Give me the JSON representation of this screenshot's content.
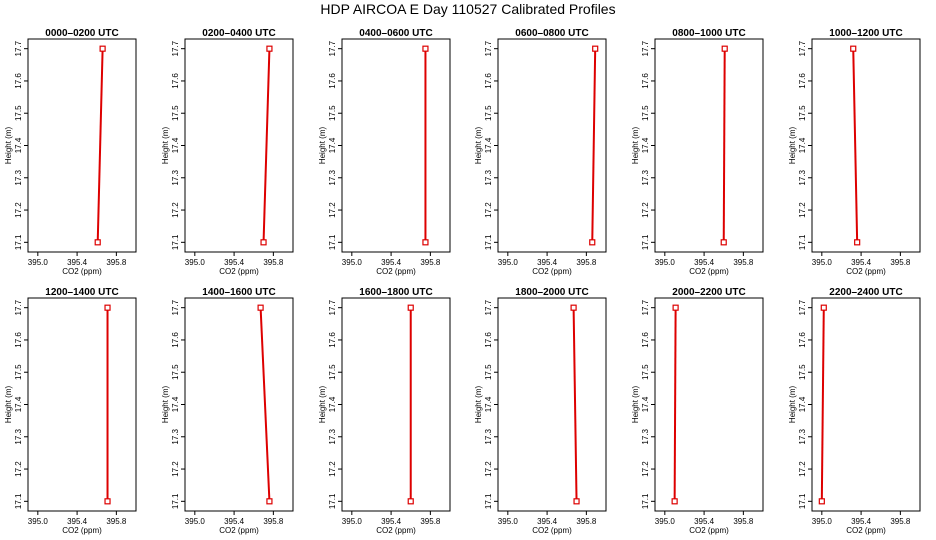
{
  "title": "HDP AIRCOA E  Day 110527  Calibrated Profiles",
  "colors": {
    "profile": "#dd0000",
    "axis": "#000000",
    "background": "#ffffff"
  },
  "chart_data": {
    "type": "line",
    "xlabel": "CO2 (ppm)",
    "ylabel": "Height (m)",
    "xlim": [
      394.9,
      396.0
    ],
    "ylim": [
      17.07,
      17.73
    ],
    "xticks": [
      "395.0",
      "395.4",
      "395.8"
    ],
    "xtick_values": [
      395.0,
      395.4,
      395.8
    ],
    "yticks": [
      "17.1",
      "17.2",
      "17.3",
      "17.4",
      "17.5",
      "17.6",
      "17.7"
    ],
    "ytick_values": [
      17.1,
      17.2,
      17.3,
      17.4,
      17.5,
      17.6,
      17.7
    ],
    "panels": [
      {
        "title": "0000–0200 UTC",
        "points": [
          {
            "x": 395.61,
            "y": 17.1
          },
          {
            "x": 395.66,
            "y": 17.7
          }
        ]
      },
      {
        "title": "0200–0400 UTC",
        "points": [
          {
            "x": 395.7,
            "y": 17.1
          },
          {
            "x": 395.76,
            "y": 17.7
          }
        ]
      },
      {
        "title": "0400–0600 UTC",
        "points": [
          {
            "x": 395.75,
            "y": 17.1
          },
          {
            "x": 395.75,
            "y": 17.7
          }
        ]
      },
      {
        "title": "0600–0800 UTC",
        "points": [
          {
            "x": 395.86,
            "y": 17.1
          },
          {
            "x": 395.89,
            "y": 17.7
          }
        ]
      },
      {
        "title": "0800–1000 UTC",
        "points": [
          {
            "x": 395.6,
            "y": 17.1
          },
          {
            "x": 395.61,
            "y": 17.7
          }
        ]
      },
      {
        "title": "1000–1200 UTC",
        "points": [
          {
            "x": 395.36,
            "y": 17.1
          },
          {
            "x": 395.32,
            "y": 17.7
          }
        ]
      },
      {
        "title": "1200–1400 UTC",
        "points": [
          {
            "x": 395.71,
            "y": 17.1
          },
          {
            "x": 395.71,
            "y": 17.7
          }
        ]
      },
      {
        "title": "1400–1600 UTC",
        "points": [
          {
            "x": 395.76,
            "y": 17.1
          },
          {
            "x": 395.67,
            "y": 17.7
          }
        ]
      },
      {
        "title": "1600–1800 UTC",
        "points": [
          {
            "x": 395.6,
            "y": 17.1
          },
          {
            "x": 395.6,
            "y": 17.7
          }
        ]
      },
      {
        "title": "1800–2000 UTC",
        "points": [
          {
            "x": 395.7,
            "y": 17.1
          },
          {
            "x": 395.67,
            "y": 17.7
          }
        ]
      },
      {
        "title": "2000–2200 UTC",
        "points": [
          {
            "x": 395.1,
            "y": 17.1
          },
          {
            "x": 395.11,
            "y": 17.7
          }
        ]
      },
      {
        "title": "2200–2400 UTC",
        "points": [
          {
            "x": 395.0,
            "y": 17.1
          },
          {
            "x": 395.02,
            "y": 17.7
          }
        ]
      }
    ]
  }
}
